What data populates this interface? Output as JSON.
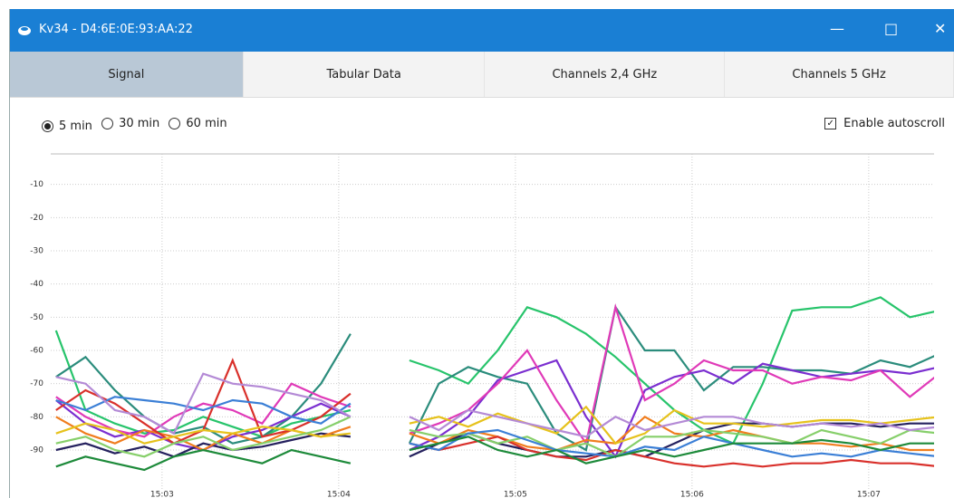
{
  "window": {
    "title": "Kv34 - D4:6E:0E:93:AA:22"
  },
  "tabs": [
    "Signal",
    "Tabular Data",
    "Channels 2,4 GHz",
    "Channels 5 GHz"
  ],
  "options": {
    "ranges": [
      "5 min",
      "30 min",
      "60 min"
    ],
    "autoscroll": "Enable autoscroll"
  },
  "chart_data": {
    "type": "line",
    "x": [
      2.4,
      2.567,
      2.733,
      2.9,
      3.067,
      3.233,
      3.4,
      3.567,
      3.733,
      3.9,
      4.067,
      4.233,
      4.4,
      4.567,
      4.733,
      4.9,
      5.067,
      5.233,
      5.4,
      5.567,
      5.733,
      5.9,
      6.067,
      6.233,
      6.4,
      6.567,
      6.733,
      6.9,
      7.067,
      7.233,
      7.4
    ],
    "xlim": [
      2.37,
      7.37
    ],
    "xticks": [
      {
        "value": 3,
        "label": "15:03"
      },
      {
        "value": 4,
        "label": "15:04"
      },
      {
        "value": 5,
        "label": "15:05"
      },
      {
        "value": 6,
        "label": "15:06"
      },
      {
        "value": 7,
        "label": "15:07"
      }
    ],
    "ylim": [
      -102,
      0
    ],
    "yticks": [
      -10,
      -20,
      -30,
      -40,
      -50,
      -60,
      -70,
      -80,
      -90
    ],
    "grid": true,
    "series": [
      {
        "color": "#27c46b",
        "values": [
          -54,
          -78,
          -82,
          -85,
          -84,
          -80,
          -83,
          -86,
          -82,
          -80,
          -78,
          null,
          -63,
          -66,
          -70,
          -60,
          -47,
          -50,
          -55,
          -62,
          -70,
          -78,
          -84,
          -88,
          -70,
          -48,
          -47,
          -47,
          -44,
          -50,
          -48
        ]
      },
      {
        "color": "#2b8c7c",
        "values": [
          -68,
          -62,
          -72,
          -80,
          -85,
          -83,
          -88,
          -86,
          -80,
          -70,
          -55,
          null,
          -88,
          -70,
          -65,
          -68,
          -70,
          -85,
          -90,
          -47,
          -60,
          -60,
          -72,
          -65,
          -65,
          -66,
          -66,
          -67,
          -63,
          -65,
          -61
        ]
      },
      {
        "color": "#7b2fd0",
        "values": [
          -75,
          -82,
          -86,
          -84,
          -88,
          -90,
          -86,
          -84,
          -80,
          -76,
          -80,
          null,
          -90,
          -86,
          -80,
          -69,
          -66,
          -63,
          -80,
          -92,
          -72,
          -68,
          -66,
          -70,
          -64,
          -66,
          -68,
          -67,
          -66,
          -67,
          -65
        ]
      },
      {
        "color": "#e03ab8",
        "values": [
          -74,
          -80,
          -84,
          -86,
          -80,
          -76,
          -78,
          -82,
          -70,
          -74,
          -77,
          null,
          -85,
          -82,
          -78,
          -70,
          -60,
          -75,
          -88,
          -47,
          -75,
          -70,
          -63,
          -66,
          -66,
          -70,
          -68,
          -69,
          -66,
          -74,
          -67
        ]
      },
      {
        "color": "#25215e",
        "values": [
          -90,
          -88,
          -91,
          -89,
          -92,
          -88,
          -90,
          -89,
          -87,
          -85,
          -86,
          null,
          -92,
          -88,
          -85,
          -88,
          -90,
          -92,
          -92,
          -90,
          -92,
          -88,
          -84,
          -82,
          -82,
          -83,
          -82,
          -82,
          -83,
          -82,
          -82
        ]
      },
      {
        "color": "#f07d1e",
        "values": [
          -80,
          -85,
          -88,
          -84,
          -86,
          -90,
          -85,
          -88,
          -84,
          -86,
          -83,
          null,
          -85,
          -88,
          -84,
          -86,
          -89,
          -90,
          -87,
          -88,
          -80,
          -85,
          -86,
          -84,
          -86,
          -88,
          -88,
          -89,
          -88,
          -90,
          -90
        ]
      },
      {
        "color": "#d9302b",
        "values": [
          -78,
          -72,
          -76,
          -82,
          -88,
          -84,
          -63,
          -86,
          -84,
          -80,
          -73,
          null,
          -88,
          -90,
          -88,
          -86,
          -90,
          -92,
          -93,
          -90,
          -92,
          -94,
          -95,
          -94,
          -95,
          -94,
          -94,
          -93,
          -94,
          -94,
          -95
        ]
      },
      {
        "color": "#e6c21c",
        "values": [
          -85,
          -82,
          -84,
          -88,
          -86,
          -84,
          -85,
          -83,
          -84,
          -86,
          -85,
          null,
          -82,
          -80,
          -83,
          -79,
          -82,
          -85,
          -77,
          -88,
          -85,
          -78,
          -82,
          -82,
          -83,
          -82,
          -81,
          -81,
          -82,
          -81,
          -80
        ]
      },
      {
        "color": "#86cf6a",
        "values": [
          -88,
          -86,
          -90,
          -92,
          -88,
          -86,
          -90,
          -88,
          -86,
          -84,
          -80,
          null,
          -84,
          -86,
          -85,
          -88,
          -86,
          -90,
          -88,
          -92,
          -86,
          -86,
          -84,
          -85,
          -86,
          -88,
          -84,
          -86,
          -88,
          -84,
          -85
        ]
      },
      {
        "color": "#3b7fd6",
        "values": [
          -75,
          -78,
          -74,
          -75,
          -76,
          -78,
          -75,
          -76,
          -80,
          -82,
          -76,
          null,
          -88,
          -90,
          -85,
          -84,
          -87,
          -90,
          -91,
          -92,
          -89,
          -90,
          -86,
          -88,
          -90,
          -92,
          -91,
          -92,
          -90,
          -91,
          -92
        ]
      },
      {
        "color": "#b48ad6",
        "values": [
          -68,
          -70,
          -78,
          -80,
          -85,
          -67,
          -70,
          -71,
          -73,
          -75,
          -80,
          null,
          -80,
          -84,
          -78,
          -80,
          -82,
          -84,
          -86,
          -80,
          -84,
          -82,
          -80,
          -80,
          -82,
          -83,
          -82,
          -83,
          -82,
          -84,
          -83
        ]
      },
      {
        "color": "#1d8a3a",
        "values": [
          -95,
          -92,
          -94,
          -96,
          -92,
          -90,
          -92,
          -94,
          -90,
          -92,
          -94,
          null,
          -90,
          -88,
          -86,
          -90,
          -92,
          -90,
          -94,
          -92,
          -90,
          -92,
          -90,
          -88,
          -88,
          -88,
          -87,
          -88,
          -90,
          -88,
          -88
        ]
      }
    ]
  }
}
